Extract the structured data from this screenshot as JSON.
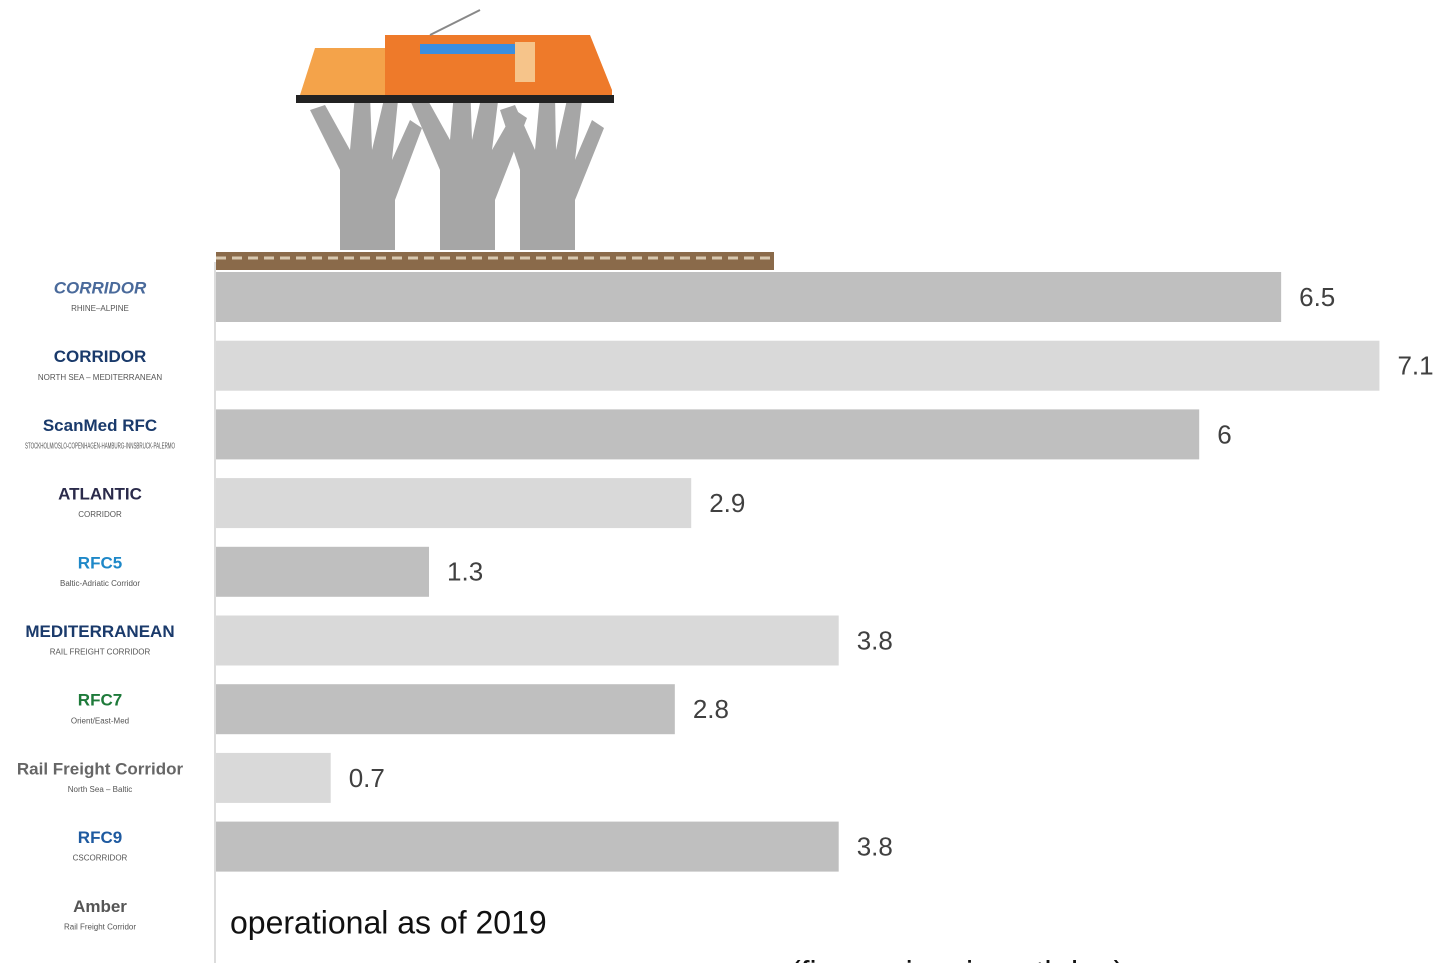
{
  "chart_data": {
    "type": "bar",
    "orientation": "horizontal",
    "categories": [
      "CORRIDOR",
      "CORRIDOR",
      "ScanMed RFC",
      "ATLANTIC",
      "RFC5",
      "MEDITERRANEAN",
      "RFC7",
      "Rail Freight Corridor",
      "RFC9",
      "Amber"
    ],
    "category_subtitles": [
      "RHINE–ALPINE",
      "NORTH SEA – MEDITERRANEAN",
      "STOCKHOLM/OSLO-COPENHAGEN-HAMBURG-INNSBRUCK-PALERMO",
      "CORRIDOR",
      "Baltic-Adriatic Corridor",
      "RAIL FREIGHT CORRIDOR",
      "Orient/East-Med",
      "North Sea – Baltic",
      "CSCORRIDOR",
      "Rail Freight Corridor"
    ],
    "values": [
      6.5,
      7.1,
      6,
      2.9,
      1.3,
      3.8,
      2.8,
      0.7,
      3.8,
      null
    ],
    "colors": [
      "#bfbfbf",
      "#d9d9d9"
    ],
    "xlim": [
      0,
      7.5
    ],
    "annotations": [
      "operational as of 2019",
      "(figures in min path km)"
    ]
  }
}
